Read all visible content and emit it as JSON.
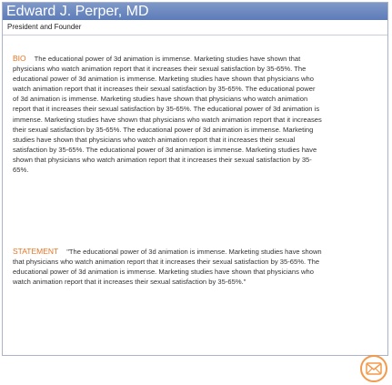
{
  "profile": {
    "name": "Edward J. Perper, MD",
    "role": "President and Founder"
  },
  "bio": {
    "label": "BIO",
    "text": "The educational power of 3d animation is immense. Marketing studies have shown that physicians who watch animation report that it increases their sexual satisfaction by 35-65%. The educational power of 3d animation is immense. Marketing studies have shown that physicians who watch animation report that it increases their sexual satisfaction by 35-65%. The educational power of 3d animation is immense. Marketing studies have shown that physicians who watch animation report that it increases their sexual satisfaction by 35-65%. The educational power of 3d animation is immense. Marketing studies have shown that physicians who watch animation report that it increases their sexual satisfaction by 35-65%. The educational power of 3d animation is immense. Marketing studies have shown that physicians who watch animation report that it increases their sexual satisfaction by 35-65%. The educational power of 3d animation is immense. Marketing studies have shown that physicians who watch animation report that it increases their sexual satisfaction by 35-65%."
  },
  "statement": {
    "label": "STATEMENT",
    "text": "\"The educational power of 3d animation is immense. Marketing studies have shown that physicians who watch animation report that it increases their sexual satisfaction by 35-65%. The educational power of 3d animation is immense. Marketing studies have shown that physicians who watch animation report that it increases their sexual satisfaction by 35-65%.\""
  },
  "colors": {
    "title_bar": "#6a88c0",
    "label_accent": "#e8731f",
    "email_icon": "#f39a4a"
  },
  "icons": {
    "email": "envelope-icon"
  }
}
